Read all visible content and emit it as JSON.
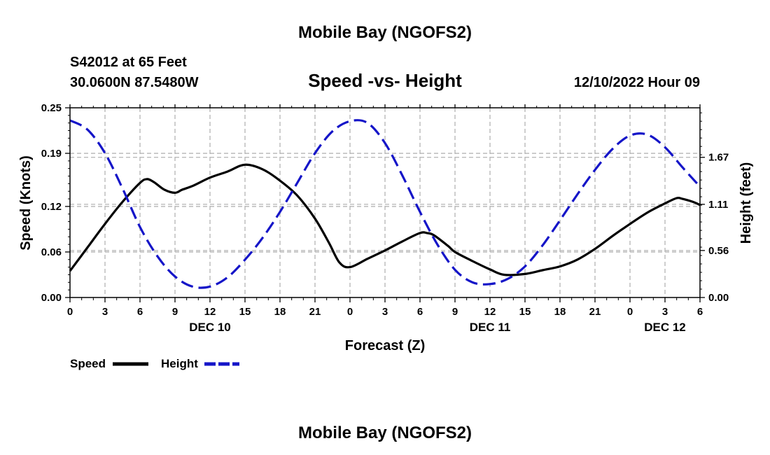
{
  "page": {
    "title": "Mobile Bay (NGOFS2)",
    "station_line": "S42012 at 65 Feet",
    "coords_line": "30.0600N  87.5480W",
    "chart_title": "Speed -vs- Height",
    "datetime": "12/10/2022 Hour 09",
    "footer_title": "Mobile Bay (NGOFS2)"
  },
  "colors": {
    "speed": "#000000",
    "height": "#1515c8",
    "grid": "#b4b4b4"
  },
  "chart_data": {
    "type": "line",
    "title": "Speed -vs- Height",
    "xlabel": "Forecast (Z)",
    "ylabel_left": "Speed (Knots)",
    "ylabel_right": "Height (feet)",
    "grid": true,
    "legend_placement": "bottom-left",
    "x_units": "hours from 2022-12-10 00Z",
    "xlim": [
      0,
      54
    ],
    "x_ticks": [
      0,
      3,
      6,
      9,
      12,
      15,
      18,
      21,
      24,
      27,
      30,
      33,
      36,
      39,
      42,
      45,
      48,
      51,
      54
    ],
    "x_tick_labels": [
      "0",
      "3",
      "6",
      "9",
      "12",
      "15",
      "18",
      "21",
      "0",
      "3",
      "6",
      "9",
      "12",
      "15",
      "18",
      "21",
      "0",
      "3",
      "6"
    ],
    "day_labels": [
      {
        "x": 12,
        "label": "DEC 10"
      },
      {
        "x": 36,
        "label": "DEC 11"
      },
      {
        "x": 51,
        "label": "DEC 12"
      }
    ],
    "ylim_left": [
      0,
      0.25
    ],
    "y_ticks_left": [
      0,
      0.06,
      0.12,
      0.19,
      0.25
    ],
    "y_tick_labels_left": [
      "0.00",
      "0.06",
      "0.12",
      "0.19",
      "0.25"
    ],
    "ylim_right": [
      0,
      2.26
    ],
    "y_ticks_right": [
      0,
      0.56,
      1.11,
      1.67
    ],
    "y_tick_labels_right": [
      "0.00",
      "0.56",
      "1.11",
      "1.67"
    ],
    "series": [
      {
        "name": "Speed",
        "axis": "left",
        "style": "solid",
        "x": [
          0,
          1.5,
          3,
          4.5,
          6,
          6.6,
          7.2,
          8.1,
          9,
          9.6,
          10.5,
          12,
          13.5,
          15,
          16.5,
          18,
          19.5,
          21,
          22.2,
          23.1,
          24,
          25.5,
          27,
          28.5,
          30,
          30.6,
          31.2,
          32.4,
          33,
          34.5,
          36,
          37.2,
          39,
          40.5,
          42,
          43.5,
          45,
          46.5,
          48,
          49.5,
          51,
          52,
          52.5,
          53.4,
          54
        ],
        "values": [
          0.035,
          0.066,
          0.097,
          0.126,
          0.151,
          0.156,
          0.152,
          0.142,
          0.138,
          0.142,
          0.147,
          0.158,
          0.166,
          0.175,
          0.169,
          0.154,
          0.134,
          0.104,
          0.072,
          0.046,
          0.04,
          0.051,
          0.062,
          0.074,
          0.085,
          0.085,
          0.082,
          0.068,
          0.06,
          0.048,
          0.037,
          0.03,
          0.031,
          0.036,
          0.041,
          0.05,
          0.064,
          0.081,
          0.097,
          0.112,
          0.124,
          0.131,
          0.13,
          0.126,
          0.122
        ]
      },
      {
        "name": "Height",
        "axis": "right",
        "style": "dashed",
        "x": [
          0,
          1.5,
          3,
          4.5,
          6,
          7.5,
          9,
          10.5,
          12,
          13.5,
          15,
          16.5,
          18,
          19.5,
          21,
          22.5,
          24,
          25.5,
          27,
          28.5,
          30,
          31.5,
          33,
          34.5,
          36,
          37.5,
          39,
          40.5,
          42,
          43.5,
          45,
          46.5,
          48,
          49.5,
          51,
          52.5,
          54
        ],
        "values": [
          2.11,
          2.0,
          1.72,
          1.3,
          0.84,
          0.49,
          0.25,
          0.13,
          0.13,
          0.24,
          0.45,
          0.71,
          1.02,
          1.37,
          1.72,
          1.98,
          2.1,
          2.08,
          1.84,
          1.45,
          1.02,
          0.63,
          0.33,
          0.18,
          0.16,
          0.22,
          0.37,
          0.62,
          0.92,
          1.23,
          1.52,
          1.77,
          1.93,
          1.94,
          1.79,
          1.55,
          1.32
        ]
      }
    ]
  },
  "legend": {
    "speed_label": "Speed",
    "height_label": "Height"
  }
}
